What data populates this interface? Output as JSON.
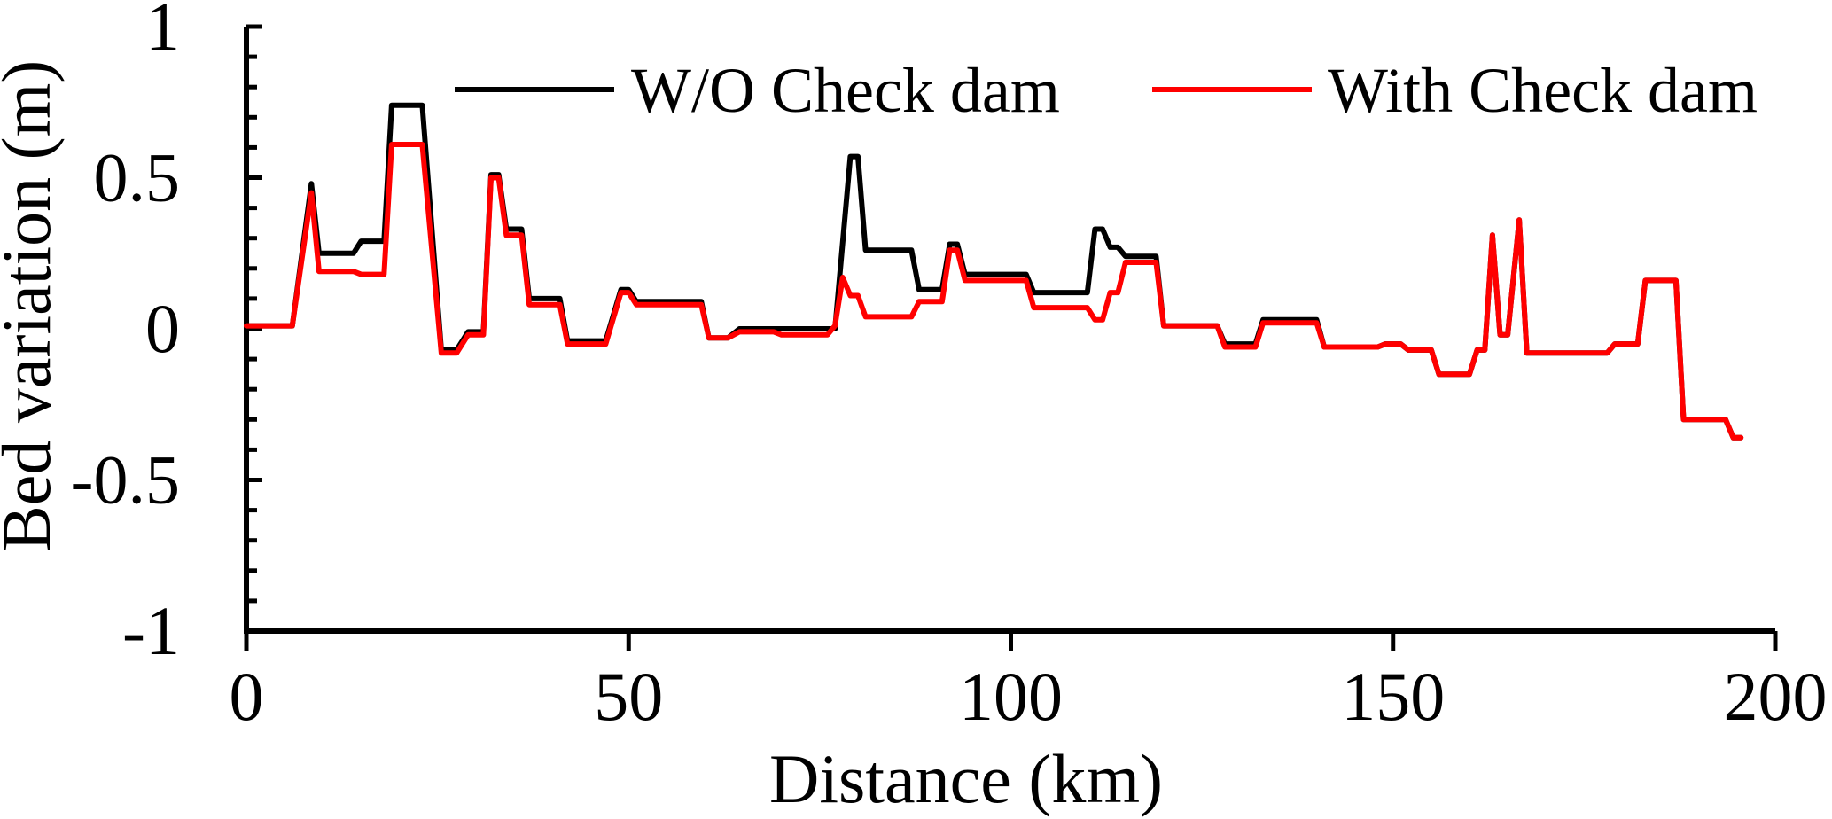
{
  "chart_data": {
    "type": "line",
    "title": "",
    "xlabel": "Distance (km)",
    "ylabel": "Bed variation (m)",
    "xlim": [
      0,
      200
    ],
    "ylim": [
      -1,
      1
    ],
    "x_ticks": [
      0,
      50,
      100,
      150,
      200
    ],
    "x_tick_labels": [
      "0",
      "50",
      "100",
      "150",
      "200"
    ],
    "y_ticks": [
      1,
      0.5,
      0,
      -0.5,
      -1
    ],
    "y_tick_labels": [
      "1",
      "0.5",
      "0",
      "-0.5",
      "-1"
    ],
    "y_minor_step": 0.1,
    "x_minor_step": 10,
    "grid": false,
    "legend_position": "top",
    "series": [
      {
        "name": "W/O Check dam",
        "color": "#000000",
        "x": [
          0,
          6,
          8.5,
          9.5,
          14,
          15,
          18,
          19,
          23,
          25.5,
          27.5,
          29,
          31,
          32,
          33,
          34,
          35,
          36,
          37,
          41,
          42,
          47,
          49,
          50,
          51,
          59.5,
          60.5,
          63,
          64.5,
          76,
          77,
          79,
          80,
          81,
          87,
          88,
          91,
          92,
          93,
          94,
          102,
          103,
          109,
          110,
          111,
          112,
          113,
          114,
          115,
          116,
          119,
          120,
          127,
          128,
          132,
          133,
          134,
          140,
          141,
          148,
          149,
          151,
          152,
          155,
          156,
          160,
          161,
          162,
          163,
          164,
          165,
          166.5,
          167.5,
          168.5,
          178,
          179,
          182,
          183,
          187,
          188,
          193.5,
          194.5,
          195.5
        ],
        "y": [
          0.01,
          0.01,
          0.48,
          0.25,
          0.25,
          0.29,
          0.29,
          0.74,
          0.74,
          -0.07,
          -0.07,
          -0.01,
          -0.01,
          0.51,
          0.51,
          0.33,
          0.33,
          0.33,
          0.1,
          0.1,
          -0.04,
          -0.04,
          0.13,
          0.13,
          0.09,
          0.09,
          -0.03,
          -0.03,
          0.0,
          0.0,
          0.0,
          0.57,
          0.57,
          0.26,
          0.26,
          0.13,
          0.13,
          0.28,
          0.28,
          0.18,
          0.18,
          0.12,
          0.12,
          0.12,
          0.33,
          0.33,
          0.27,
          0.27,
          0.24,
          0.24,
          0.24,
          0.01,
          0.01,
          -0.05,
          -0.05,
          0.03,
          0.03,
          0.03,
          -0.06,
          -0.06,
          -0.05,
          -0.05,
          -0.07,
          -0.07,
          -0.15,
          -0.15,
          -0.07,
          -0.07,
          0.31,
          -0.02,
          -0.02,
          0.36,
          -0.08,
          -0.08,
          -0.08,
          -0.05,
          -0.05,
          0.16,
          0.16,
          -0.3,
          -0.3,
          -0.36,
          -0.36
        ]
      },
      {
        "name": "With Check dam",
        "color": "#ff0000",
        "x": [
          0,
          6,
          8.5,
          9.5,
          14,
          15,
          18,
          19,
          23,
          25.5,
          27.5,
          29,
          31,
          32,
          33,
          34,
          35,
          36,
          37,
          41,
          42,
          47,
          49,
          50,
          51,
          59.5,
          60.5,
          63,
          64.5,
          69,
          70,
          76,
          77,
          78,
          79,
          80,
          81,
          87,
          88,
          91,
          92,
          93,
          94,
          102,
          103,
          109,
          110,
          111,
          112,
          113,
          114,
          115,
          116,
          119,
          120,
          127,
          128,
          132,
          133,
          134,
          140,
          141,
          148,
          149,
          151,
          152,
          155,
          156,
          160,
          161,
          162,
          163,
          164,
          165,
          166.5,
          167.5,
          168.5,
          178,
          179,
          182,
          183,
          187,
          188,
          193.5,
          194.5,
          195.5
        ],
        "y": [
          0.01,
          0.01,
          0.45,
          0.19,
          0.19,
          0.18,
          0.18,
          0.61,
          0.61,
          -0.08,
          -0.08,
          -0.02,
          -0.02,
          0.5,
          0.5,
          0.31,
          0.31,
          0.31,
          0.08,
          0.08,
          -0.05,
          -0.05,
          0.12,
          0.12,
          0.08,
          0.08,
          -0.03,
          -0.03,
          -0.01,
          -0.01,
          -0.02,
          -0.02,
          0.01,
          0.17,
          0.11,
          0.11,
          0.04,
          0.04,
          0.09,
          0.09,
          0.26,
          0.26,
          0.16,
          0.16,
          0.07,
          0.07,
          0.07,
          0.03,
          0.03,
          0.12,
          0.12,
          0.22,
          0.22,
          0.22,
          0.01,
          0.01,
          -0.06,
          -0.06,
          0.02,
          0.02,
          0.02,
          -0.06,
          -0.06,
          -0.05,
          -0.05,
          -0.07,
          -0.07,
          -0.15,
          -0.15,
          -0.07,
          -0.07,
          0.31,
          -0.02,
          -0.02,
          0.36,
          -0.08,
          -0.08,
          -0.08,
          -0.05,
          -0.05,
          0.16,
          0.16,
          -0.3,
          -0.3,
          -0.36,
          -0.36
        ]
      }
    ]
  }
}
